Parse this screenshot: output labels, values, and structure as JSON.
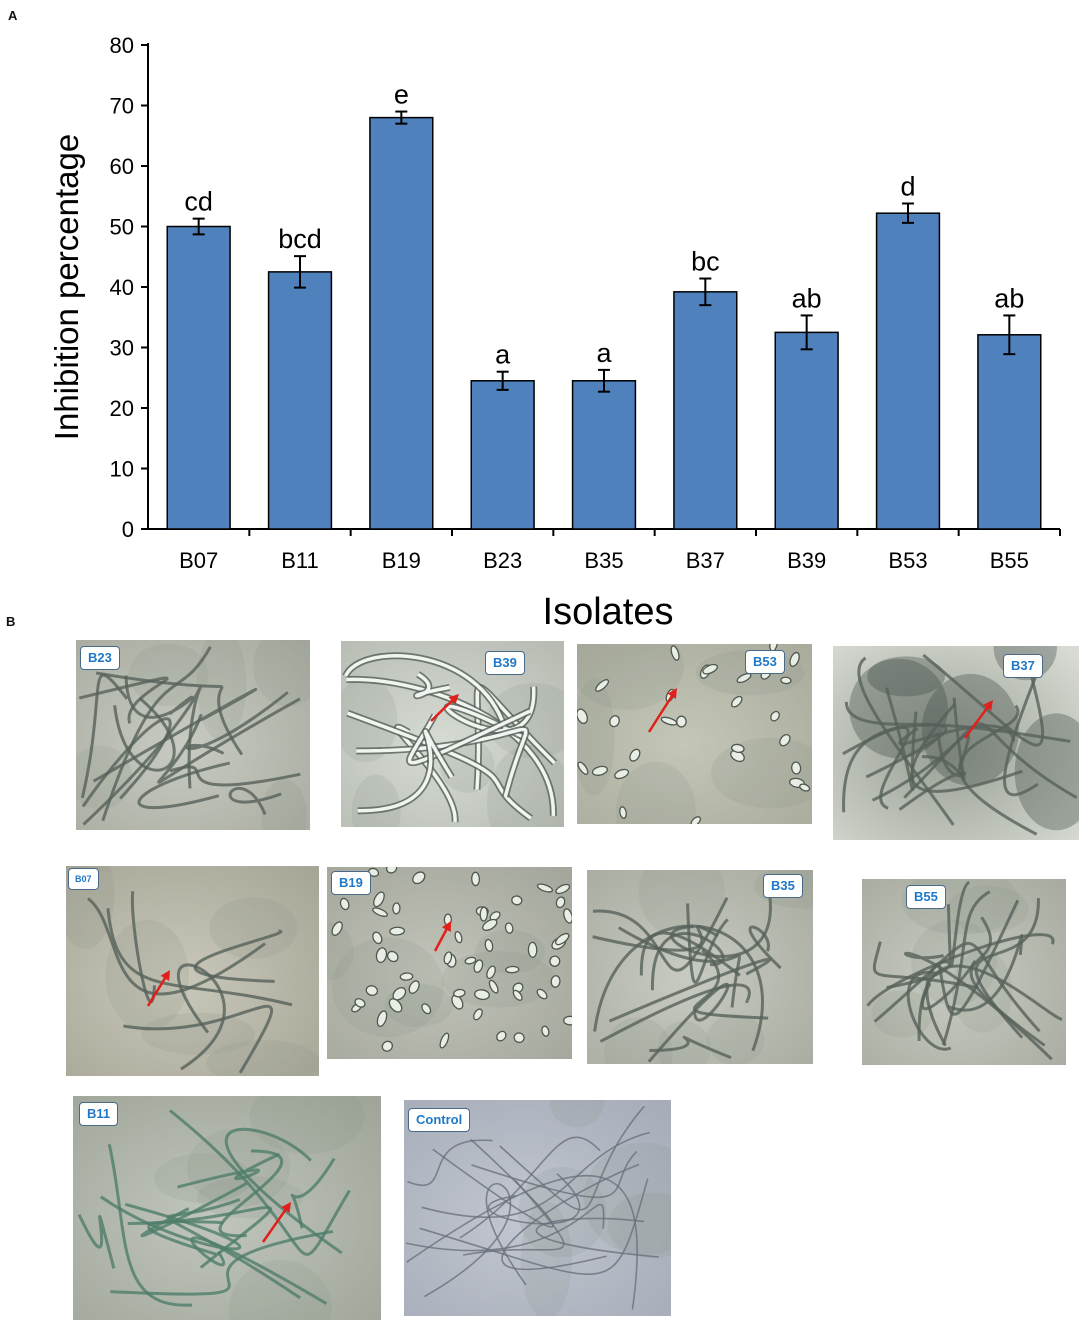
{
  "panel_a_letter": "A",
  "panel_b_letter": "B",
  "chart_data": {
    "type": "bar",
    "categories": [
      "B07",
      "B11",
      "B19",
      "B23",
      "B35",
      "B37",
      "B39",
      "B53",
      "B55"
    ],
    "values": [
      50,
      42.5,
      68,
      24.5,
      24.5,
      39.2,
      32.5,
      52.2,
      32.1
    ],
    "errors": [
      1.3,
      2.6,
      1.0,
      1.5,
      1.8,
      2.2,
      2.8,
      1.6,
      3.2
    ],
    "significance_letters": [
      "cd",
      "bcd",
      "e",
      "a",
      "a",
      "bc",
      "ab",
      "d",
      "ab"
    ],
    "title": "",
    "xlabel": "Isolates",
    "ylabel": "Inhibition percentage",
    "ylim": [
      0,
      80
    ],
    "yticks": [
      0,
      10,
      20,
      30,
      40,
      50,
      60,
      70,
      80
    ],
    "bar_color": "#4f81bd",
    "bar_edge_color": "#000000",
    "grid": false,
    "legend": "none"
  },
  "micrographs": [
    {
      "label": "B23",
      "arrow": false,
      "content": "hyphae"
    },
    {
      "label": "B39",
      "arrow": true,
      "content": "swollen-hyphae"
    },
    {
      "label": "B53",
      "arrow": true,
      "content": "spores"
    },
    {
      "label": "B37",
      "arrow": true,
      "content": "dark-hyphae"
    },
    {
      "label": "B07",
      "arrow": true,
      "content": "sparse"
    },
    {
      "label": "B19",
      "arrow": true,
      "content": "spores-dense"
    },
    {
      "label": "B35",
      "arrow": false,
      "content": "hyphae"
    },
    {
      "label": "B55",
      "arrow": false,
      "content": "hyphae"
    },
    {
      "label": "B11",
      "arrow": true,
      "content": "green-hyphae"
    },
    {
      "label": "Control",
      "arrow": false,
      "content": "thin-hyphae"
    }
  ],
  "colors": {
    "arrow": "#e0201a",
    "label_text": "#1f78c8"
  }
}
